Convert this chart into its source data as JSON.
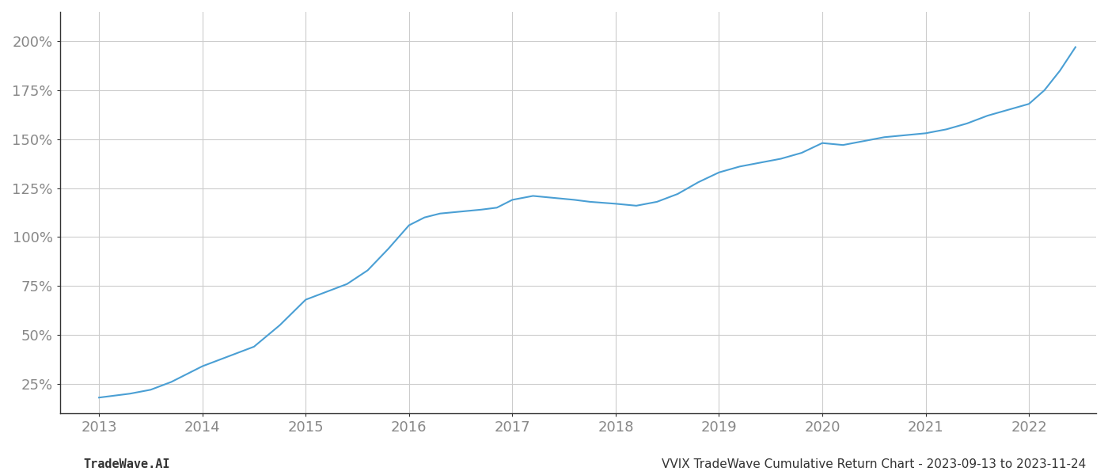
{
  "title": "",
  "footer_left": "TradeWave.AI",
  "footer_right": "VVIX TradeWave Cumulative Return Chart - 2023-09-13 to 2023-11-24",
  "line_color": "#4a9fd4",
  "background_color": "#ffffff",
  "grid_color": "#cccccc",
  "x_years": [
    2013,
    2014,
    2015,
    2016,
    2017,
    2018,
    2019,
    2020,
    2021,
    2022
  ],
  "x_values": [
    2013.0,
    2013.15,
    2013.3,
    2013.5,
    2013.7,
    2013.85,
    2014.0,
    2014.2,
    2014.5,
    2014.75,
    2015.0,
    2015.2,
    2015.4,
    2015.6,
    2015.8,
    2016.0,
    2016.15,
    2016.3,
    2016.5,
    2016.7,
    2016.85,
    2017.0,
    2017.2,
    2017.4,
    2017.6,
    2017.75,
    2018.0,
    2018.2,
    2018.4,
    2018.6,
    2018.8,
    2019.0,
    2019.2,
    2019.4,
    2019.6,
    2019.8,
    2020.0,
    2020.2,
    2020.4,
    2020.6,
    2020.8,
    2021.0,
    2021.2,
    2021.4,
    2021.6,
    2021.8,
    2022.0,
    2022.15,
    2022.3,
    2022.45
  ],
  "y_values": [
    18,
    19,
    20,
    22,
    26,
    30,
    34,
    38,
    44,
    55,
    68,
    72,
    76,
    83,
    94,
    106,
    110,
    112,
    113,
    114,
    115,
    119,
    121,
    120,
    119,
    118,
    117,
    116,
    118,
    122,
    128,
    133,
    136,
    138,
    140,
    143,
    148,
    147,
    149,
    151,
    152,
    153,
    155,
    158,
    162,
    165,
    168,
    175,
    185,
    197
  ],
  "ylim_bottom": 10,
  "ylim_top": 215,
  "yticks": [
    25,
    50,
    75,
    100,
    125,
    150,
    175,
    200
  ],
  "xlim": [
    2012.62,
    2022.65
  ],
  "line_width": 1.5,
  "tick_label_color": "#888888",
  "footer_fontsize": 11,
  "tick_fontsize": 13,
  "left_spine_color": "#333333"
}
